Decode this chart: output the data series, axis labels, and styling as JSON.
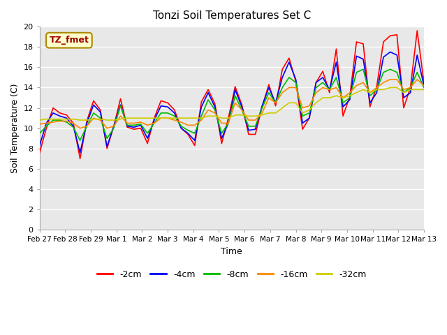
{
  "title": "Tonzi Soil Temperatures Set C",
  "xlabel": "Time",
  "ylabel": "Soil Temperature (C)",
  "annotation": "TZ_fmet",
  "ylim": [
    0,
    20
  ],
  "yticks": [
    0,
    2,
    4,
    6,
    8,
    10,
    12,
    14,
    16,
    18,
    20
  ],
  "x_labels": [
    "Feb 27",
    "Feb 28",
    "Feb 29",
    "Mar 1",
    "Mar 2",
    "Mar 3",
    "Mar 4",
    "Mar 5",
    "Mar 6",
    "Mar 7",
    "Mar 8",
    "Mar 9",
    "Mar 10",
    "Mar 11",
    "Mar 12",
    "Mar 13"
  ],
  "colors": {
    "-2cm": "#ff0000",
    "-4cm": "#0000ff",
    "-8cm": "#00bb00",
    "-16cm": "#ff8800",
    "-32cm": "#cccc00"
  },
  "fig_bg": "#ffffff",
  "plot_bg": "#e8e8e8",
  "grid_color": "#ffffff",
  "series": {
    "-2cm": [
      7.6,
      10.0,
      12.0,
      11.5,
      11.3,
      10.5,
      7.0,
      10.7,
      12.7,
      11.8,
      8.0,
      10.2,
      12.9,
      10.1,
      9.9,
      10.0,
      8.5,
      11.0,
      12.7,
      12.5,
      11.8,
      10.0,
      9.4,
      8.3,
      12.6,
      13.8,
      12.4,
      8.5,
      11.0,
      14.1,
      12.3,
      9.4,
      9.4,
      12.1,
      14.3,
      12.2,
      15.8,
      16.9,
      14.6,
      9.9,
      11.0,
      14.5,
      15.6,
      13.5,
      17.8,
      11.2,
      13.1,
      18.5,
      18.3,
      12.1,
      14.1,
      18.5,
      19.1,
      19.2,
      12.0,
      14.0,
      19.6,
      14.5
    ],
    "-4cm": [
      8.3,
      10.5,
      11.5,
      11.2,
      11.0,
      10.2,
      7.6,
      10.5,
      12.3,
      11.6,
      8.2,
      10.2,
      12.3,
      10.2,
      10.1,
      10.3,
      9.0,
      10.8,
      12.2,
      12.1,
      11.5,
      10.0,
      9.5,
      8.8,
      12.1,
      13.5,
      12.1,
      9.0,
      10.5,
      13.8,
      12.1,
      9.8,
      9.9,
      12.2,
      14.0,
      12.5,
      15.0,
      16.5,
      14.8,
      10.5,
      11.0,
      14.5,
      15.0,
      13.8,
      16.5,
      12.1,
      12.8,
      17.1,
      16.8,
      12.5,
      13.5,
      17.0,
      17.5,
      17.2,
      13.0,
      13.5,
      17.2,
      14.2
    ],
    "-8cm": [
      9.5,
      10.2,
      10.8,
      10.8,
      10.6,
      10.1,
      8.8,
      10.2,
      11.5,
      11.0,
      9.0,
      10.0,
      12.2,
      10.3,
      10.3,
      10.4,
      9.5,
      10.5,
      11.5,
      11.5,
      11.2,
      10.2,
      9.8,
      9.5,
      11.2,
      12.8,
      11.8,
      9.5,
      10.5,
      13.2,
      11.8,
      10.2,
      10.2,
      12.0,
      13.5,
      12.5,
      14.0,
      15.0,
      14.5,
      11.2,
      11.5,
      14.0,
      14.5,
      13.8,
      15.0,
      12.5,
      13.0,
      15.5,
      15.8,
      13.2,
      13.8,
      15.5,
      15.8,
      15.5,
      13.5,
      14.0,
      15.5,
      14.0
    ],
    "-16cm": [
      10.4,
      10.5,
      10.6,
      10.7,
      10.7,
      10.5,
      10.0,
      10.2,
      11.0,
      10.8,
      10.0,
      10.2,
      11.2,
      10.5,
      10.5,
      10.6,
      10.3,
      10.5,
      11.0,
      11.0,
      10.8,
      10.6,
      10.3,
      10.3,
      10.8,
      11.8,
      11.5,
      10.5,
      10.5,
      12.5,
      11.8,
      10.8,
      10.8,
      11.5,
      13.0,
      12.5,
      13.5,
      14.0,
      14.0,
      12.0,
      12.2,
      13.5,
      14.0,
      13.8,
      14.0,
      13.0,
      13.5,
      14.2,
      14.5,
      13.5,
      14.0,
      14.5,
      14.8,
      14.8,
      13.8,
      14.0,
      14.8,
      14.2
    ],
    "-32cm": [
      10.8,
      10.9,
      10.9,
      10.9,
      10.9,
      10.9,
      10.8,
      10.8,
      10.9,
      10.9,
      10.8,
      10.8,
      10.9,
      11.0,
      11.0,
      11.0,
      11.0,
      11.0,
      11.0,
      11.0,
      11.0,
      11.0,
      11.0,
      11.0,
      11.0,
      11.2,
      11.2,
      11.0,
      11.0,
      11.3,
      11.3,
      11.2,
      11.2,
      11.3,
      11.5,
      11.5,
      12.0,
      12.5,
      12.5,
      11.5,
      11.8,
      12.5,
      13.0,
      13.0,
      13.2,
      13.0,
      13.2,
      13.5,
      13.8,
      13.5,
      13.8,
      13.8,
      14.0,
      14.0,
      13.5,
      13.8,
      13.8,
      13.8
    ]
  }
}
